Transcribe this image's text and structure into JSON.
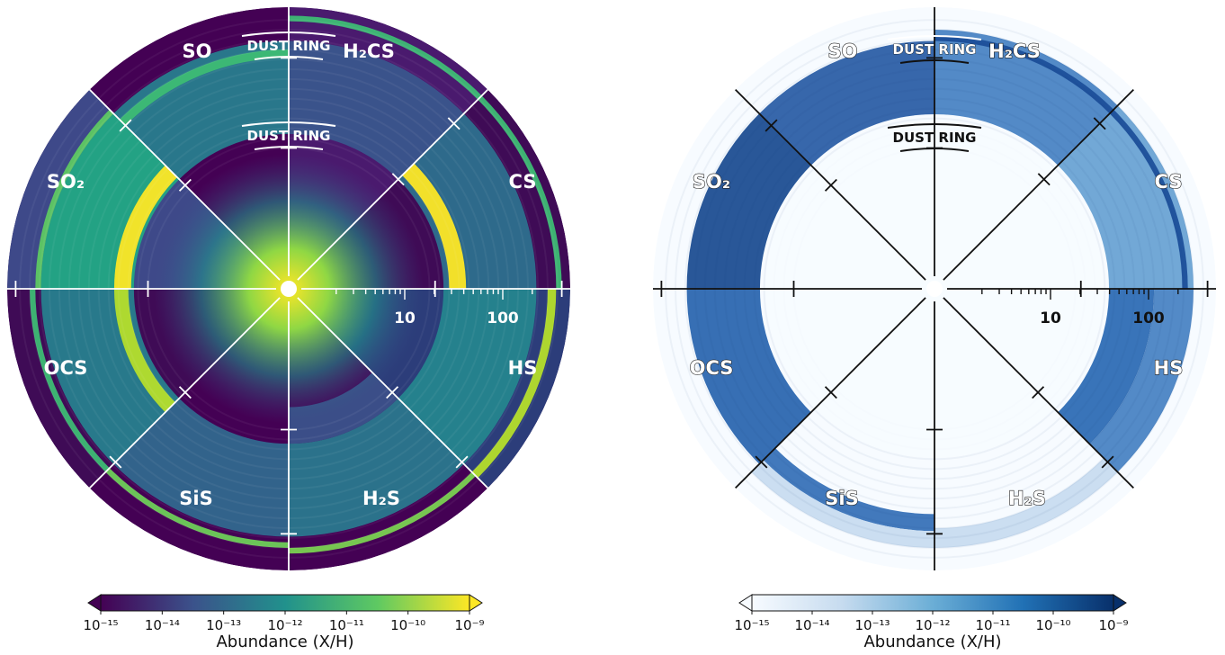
{
  "chart_data": [
    {
      "type": "heatmap",
      "panel": "left",
      "colormap": "viridis",
      "colormap_stops": [
        "#440154",
        "#3b528b",
        "#21918c",
        "#5ec962",
        "#fde725"
      ],
      "background_color": "#3f0b56",
      "sectors": [
        {
          "label": "SO",
          "base": "#4a1a6e",
          "rings": [
            [
              0.55,
              0.88,
              "#39568c"
            ],
            [
              0.95,
              0.97,
              "#3dbc74"
            ]
          ]
        },
        {
          "label": "H₂CS",
          "base": "#3f0b56",
          "rings": [
            [
              0.55,
              0.88,
              "#2d708e"
            ],
            [
              0.57,
              0.63,
              "#fde725"
            ],
            [
              0.95,
              0.97,
              "#3dbc74"
            ]
          ]
        },
        {
          "label": "CS",
          "base": "#2c3d7a",
          "rings": [
            [
              0.55,
              0.88,
              "#25858e"
            ],
            [
              0.92,
              0.95,
              "#b5de2b"
            ]
          ]
        },
        {
          "label": "HS",
          "base": "#440154",
          "rings": [
            [
              0.42,
              0.55,
              "#3b528b"
            ],
            [
              0.55,
              0.88,
              "#2a788e"
            ],
            [
              0.92,
              0.94,
              "#7ad151"
            ]
          ]
        },
        {
          "label": "H₂S",
          "base": "#440154",
          "rings": [
            [
              0.55,
              0.88,
              "#31688e"
            ],
            [
              0.9,
              0.92,
              "#6ece58"
            ]
          ]
        },
        {
          "label": "SiS",
          "base": "#3f0b56",
          "rings": [
            [
              0.55,
              0.88,
              "#277f8e"
            ],
            [
              0.57,
              0.62,
              "#b5de2b"
            ],
            [
              0.9,
              0.92,
              "#3dbc74"
            ]
          ]
        },
        {
          "label": "OCS",
          "base": "#3e4989",
          "rings": [
            [
              0.55,
              0.88,
              "#22a884"
            ],
            [
              0.56,
              0.62,
              "#fde725"
            ],
            [
              0.88,
              0.9,
              "#5ec962"
            ]
          ]
        },
        {
          "label": "SO₂",
          "base": "#440154",
          "rings": [
            [
              0.55,
              0.88,
              "#287d8e"
            ],
            [
              0.82,
              0.85,
              "#3dbc74"
            ]
          ]
        }
      ],
      "center_glow": true,
      "radial_axis": {
        "tick_labels": [
          "10",
          "100"
        ],
        "tick_values": [
          10,
          100
        ],
        "scale": "log"
      },
      "annotations": [
        "DUST RING",
        "DUST RING"
      ],
      "colorbar": {
        "label": "Abundance (X/H)",
        "ticks": [
          "10⁻¹⁵",
          "10⁻¹⁴",
          "10⁻¹³",
          "10⁻¹²",
          "10⁻¹¹",
          "10⁻¹⁰",
          "10⁻⁹"
        ],
        "range": [
          1e-15,
          1e-09
        ],
        "scale": "log"
      }
    },
    {
      "type": "heatmap",
      "panel": "right",
      "colormap": "Blues",
      "colormap_stops": [
        "#f7fbff",
        "#c6dbef",
        "#6baed6",
        "#2171b5",
        "#08306b"
      ],
      "background_color": "#f7fbff",
      "sectors": [
        {
          "label": "SO",
          "base": "#f7fbff",
          "rings": [
            [
              0.62,
              0.92,
              "#4a84c4"
            ],
            [
              0.88,
              0.9,
              "#1c4f9a"
            ]
          ]
        },
        {
          "label": "H₂CS",
          "base": "#f7fbff",
          "rings": [
            [
              0.62,
              0.92,
              "#6aa3d4"
            ],
            [
              0.88,
              0.9,
              "#1c4f9a"
            ]
          ]
        },
        {
          "label": "CS",
          "base": "#f7fbff",
          "rings": [
            [
              0.62,
              0.78,
              "#2e6db5"
            ],
            [
              0.78,
              0.92,
              "#4a84c4"
            ]
          ]
        },
        {
          "label": "HS",
          "base": "#f7fbff",
          "rings": [
            [
              0.85,
              0.92,
              "#c8dcf0"
            ]
          ]
        },
        {
          "label": "H₂S",
          "base": "#f7fbff",
          "rings": [
            [
              0.8,
              0.86,
              "#3872b8"
            ],
            [
              0.86,
              0.92,
              "#c8dcf0"
            ]
          ]
        },
        {
          "label": "SiS",
          "base": "#f7fbff",
          "rings": [
            [
              0.62,
              0.88,
              "#2c67b0"
            ]
          ]
        },
        {
          "label": "OCS",
          "base": "#f7fbff",
          "rings": [
            [
              0.62,
              0.88,
              "#1d4e92"
            ]
          ]
        },
        {
          "label": "SO₂",
          "base": "#f7fbff",
          "rings": [
            [
              0.62,
              0.88,
              "#2c5fa6"
            ]
          ]
        }
      ],
      "center_glow": false,
      "radial_axis": {
        "tick_labels": [
          "10",
          "100"
        ],
        "tick_values": [
          10,
          100
        ],
        "scale": "log"
      },
      "annotations": [
        "DUST RING",
        "DUST RING"
      ],
      "colorbar": {
        "label": "Abundance (X/H)",
        "ticks": [
          "10⁻¹⁵",
          "10⁻¹⁴",
          "10⁻¹³",
          "10⁻¹²",
          "10⁻¹¹",
          "10⁻¹⁰",
          "10⁻⁹"
        ],
        "range": [
          1e-15,
          1e-09
        ],
        "scale": "log"
      }
    }
  ]
}
